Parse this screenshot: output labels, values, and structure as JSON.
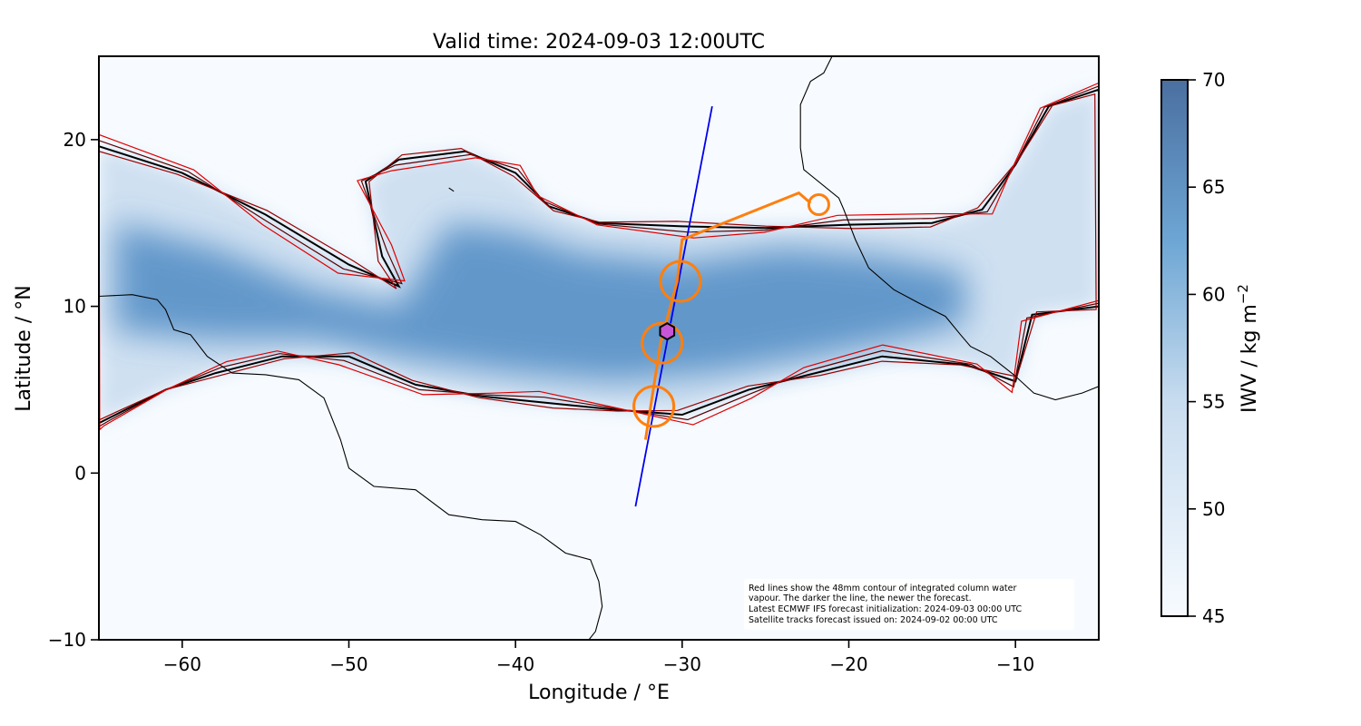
{
  "chart_data": {
    "type": "map",
    "title": "Valid time: 2024-09-03 12:00UTC",
    "xlabel": "Longitude / °E",
    "ylabel": "Latitude / °N",
    "xlim": [
      -65,
      -5
    ],
    "ylim": [
      -10,
      25
    ],
    "xticks": [
      -60,
      -50,
      -40,
      -30,
      -20,
      -10
    ],
    "yticks": [
      -10,
      0,
      10,
      20
    ],
    "xtick_labels": [
      "−60",
      "−50",
      "−40",
      "−30",
      "−20",
      "−10"
    ],
    "ytick_labels": [
      "−10",
      "0",
      "10",
      "20"
    ],
    "colorbar": {
      "label": "IWV / kg m",
      "label_sup": "−2",
      "range": [
        45,
        70
      ],
      "ticks": [
        45,
        50,
        55,
        60,
        65,
        70
      ],
      "tick_labels": [
        "45",
        "50",
        "55",
        "60",
        "65",
        "70"
      ],
      "color_low": "#f7fbff",
      "color_high": "#4a6fa0"
    },
    "satellite_track": {
      "color": "#0000ee",
      "points": [
        [
          -32.8,
          -2.0
        ],
        [
          -28.2,
          22.0
        ]
      ]
    },
    "flight_track": {
      "color": "#ff7f0e",
      "points": [
        [
          -32.2,
          2.0
        ],
        [
          -31.3,
          7.8
        ],
        [
          -30.3,
          11.5
        ],
        [
          -30.0,
          14.0
        ],
        [
          -23.0,
          16.8
        ],
        [
          -22.3,
          16.2
        ]
      ]
    },
    "circles": [
      {
        "lon": -31.7,
        "lat": 4.0,
        "r_deg": 1.2
      },
      {
        "lon": -31.2,
        "lat": 7.8,
        "r_deg": 1.2
      },
      {
        "lon": -30.1,
        "lat": 11.5,
        "r_deg": 1.2
      },
      {
        "lon": -21.8,
        "lat": 16.1,
        "r_deg": 0.6
      }
    ],
    "marker": {
      "lon": -30.9,
      "lat": 8.5,
      "color": "#c756d6",
      "shape": "hexagon"
    },
    "contour_colors": [
      "#000000",
      "#5a0000",
      "#9a0000",
      "#e00000"
    ],
    "moisture_band_outer": [
      [
        -65,
        19.6
      ],
      [
        -60,
        18.0
      ],
      [
        -55,
        15.5
      ],
      [
        -50,
        12.5
      ],
      [
        -47,
        11.2
      ],
      [
        -48,
        13.0
      ],
      [
        -49,
        17.5
      ],
      [
        -47,
        18.8
      ],
      [
        -43,
        19.3
      ],
      [
        -40,
        18.0
      ],
      [
        -38,
        16.0
      ],
      [
        -35,
        15.0
      ],
      [
        -30,
        14.8
      ],
      [
        -25,
        14.7
      ],
      [
        -20,
        14.9
      ],
      [
        -15,
        15.0
      ],
      [
        -12,
        15.8
      ],
      [
        -10,
        18.5
      ],
      [
        -8,
        22.0
      ],
      [
        -5,
        23.0
      ],
      [
        -5,
        10.0
      ],
      [
        -9,
        9.5
      ],
      [
        -10,
        5.5
      ],
      [
        -13,
        6.5
      ],
      [
        -18,
        7.0
      ],
      [
        -22,
        6.0
      ],
      [
        -26,
        5.0
      ],
      [
        -30,
        3.5
      ],
      [
        -34,
        3.8
      ],
      [
        -38,
        4.2
      ],
      [
        -42,
        4.6
      ],
      [
        -46,
        5.3
      ],
      [
        -50,
        7.0
      ],
      [
        -54,
        7.0
      ],
      [
        -58,
        6.0
      ],
      [
        -61,
        5.0
      ],
      [
        -64,
        3.5
      ],
      [
        -65,
        3.0
      ]
    ],
    "moisture_core": [
      [
        -64,
        15.0
      ],
      [
        -58,
        13.5
      ],
      [
        -52,
        11.0
      ],
      [
        -47,
        10.0
      ],
      [
        -44,
        15.0
      ],
      [
        -40,
        14.5
      ],
      [
        -36,
        13.2
      ],
      [
        -30,
        12.6
      ],
      [
        -24,
        13.5
      ],
      [
        -18,
        13.0
      ],
      [
        -13,
        12.0
      ],
      [
        -13,
        9.0
      ],
      [
        -17,
        8.0
      ],
      [
        -22,
        7.0
      ],
      [
        -28,
        6.0
      ],
      [
        -34,
        5.5
      ],
      [
        -40,
        6.0
      ],
      [
        -46,
        6.8
      ],
      [
        -52,
        8.0
      ],
      [
        -58,
        8.0
      ],
      [
        -64,
        8.5
      ]
    ],
    "coastlines": [
      [
        [
          -65,
          10.6
        ],
        [
          -63,
          10.7
        ],
        [
          -61.5,
          10.4
        ],
        [
          -61,
          9.8
        ],
        [
          -60.5,
          8.6
        ],
        [
          -59.5,
          8.3
        ],
        [
          -58.5,
          7.0
        ],
        [
          -57,
          6.0
        ],
        [
          -55,
          5.9
        ],
        [
          -53,
          5.6
        ],
        [
          -51.5,
          4.5
        ],
        [
          -50.5,
          2.0
        ],
        [
          -50,
          0.3
        ],
        [
          -48.5,
          -0.8
        ],
        [
          -46,
          -1.0
        ],
        [
          -44,
          -2.5
        ],
        [
          -42,
          -2.8
        ],
        [
          -40,
          -2.9
        ],
        [
          -38.5,
          -3.7
        ],
        [
          -37,
          -4.8
        ],
        [
          -35.5,
          -5.2
        ],
        [
          -35,
          -6.5
        ],
        [
          -34.8,
          -8.0
        ],
        [
          -35.2,
          -9.5
        ],
        [
          -35.6,
          -10
        ]
      ],
      [
        [
          -21,
          25
        ],
        [
          -21.5,
          24
        ],
        [
          -22.3,
          23.5
        ],
        [
          -22.9,
          22.1
        ],
        [
          -22.9,
          19.5
        ],
        [
          -22.7,
          18.2
        ],
        [
          -20.6,
          16.5
        ],
        [
          -20.3,
          15.8
        ],
        [
          -19.6,
          14.0
        ],
        [
          -18.8,
          12.3
        ],
        [
          -17.3,
          11.0
        ],
        [
          -15.8,
          10.2
        ],
        [
          -14.2,
          9.4
        ],
        [
          -13.3,
          8.3
        ],
        [
          -12.7,
          7.6
        ],
        [
          -11.5,
          7.0
        ],
        [
          -10.1,
          5.9
        ],
        [
          -8.9,
          4.8
        ],
        [
          -7.6,
          4.4
        ],
        [
          -6,
          4.8
        ],
        [
          -5,
          5.2
        ]
      ],
      [
        [
          -44.0,
          17.1
        ],
        [
          -43.7,
          16.9
        ]
      ]
    ],
    "annotation": [
      "Red lines show the 48mm contour of integrated column water",
      "vapour. The darker the line, the newer the forecast.",
      "Latest ECMWF IFS forecast initialization: 2024-09-03 00:00 UTC",
      "Satellite tracks forecast issued on: 2024-09-02 00:00 UTC"
    ]
  }
}
